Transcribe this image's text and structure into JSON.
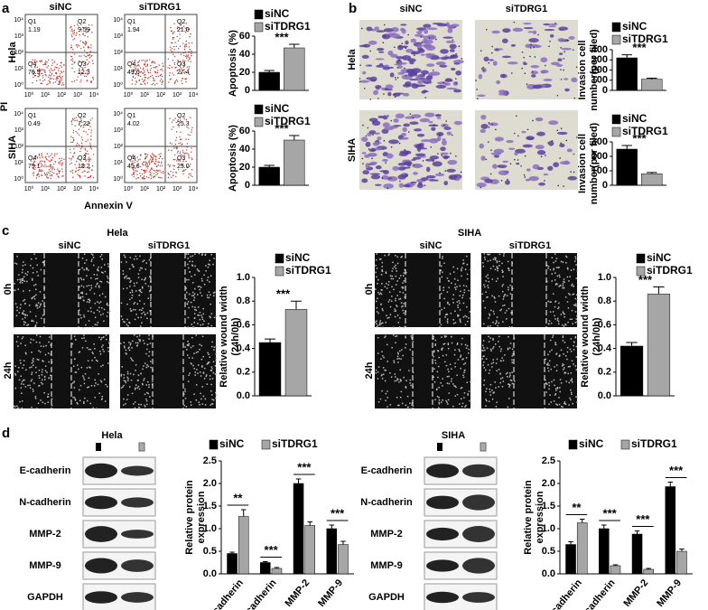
{
  "panels": {
    "a": {
      "label": "a",
      "columns": [
        "siNC",
        "siTDRG1"
      ],
      "rows": [
        "Hela",
        "SIHA"
      ],
      "y_axis": "PI",
      "x_axis": "Annexin V",
      "axis_ticks": [
        "10⁰",
        "10¹",
        "10²",
        "10³",
        "10⁴"
      ],
      "plots": [
        [
          {
            "name": "Q1",
            "value": "1.19"
          },
          {
            "name": "Q2",
            "value": "9.59"
          },
          {
            "name": "Q3",
            "value": "12.3"
          },
          {
            "name": "Q4",
            "value": "76.9"
          }
        ],
        [
          {
            "name": "Q1",
            "value": "1.94"
          },
          {
            "name": "Q2",
            "value": "21.0"
          },
          {
            "name": "Q3",
            "value": "27.4"
          },
          {
            "name": "Q4",
            "value": "49.6"
          }
        ],
        [
          {
            "name": "Q1",
            "value": "0.49"
          },
          {
            "name": "Q2",
            "value": "7.22"
          },
          {
            "name": "Q3",
            "value": "13.2"
          },
          {
            "name": "Q4",
            "value": "79.1"
          }
        ],
        [
          {
            "name": "Q1",
            "value": "4.02"
          },
          {
            "name": "Q2",
            "value": "25.3"
          },
          {
            "name": "Q3",
            "value": "25.0"
          },
          {
            "name": "Q4",
            "value": "45.6"
          }
        ]
      ]
    },
    "b": {
      "label": "b",
      "columns": [
        "siNC",
        "siTDRG1"
      ],
      "rows": [
        "Hela",
        "SIHA"
      ]
    },
    "c": {
      "label": "c",
      "groups": [
        {
          "title": "Hela",
          "columns": [
            "siNC",
            "siTDRG1"
          ],
          "rows": [
            "0h",
            "24h"
          ]
        },
        {
          "title": "SIHA",
          "columns": [
            "siNC",
            "siTDRG1"
          ],
          "rows": [
            "0h",
            "24h"
          ]
        }
      ]
    },
    "d": {
      "label": "d",
      "groups": [
        {
          "title": "Hela",
          "rows": [
            "E-cadherin",
            "N-cadherin",
            "MMP-2",
            "MMP-9",
            "GAPDH"
          ]
        },
        {
          "title": "SIHA",
          "rows": [
            "E-cadherin",
            "N-cadherin",
            "MMP-2",
            "MMP-9",
            "GAPDH"
          ]
        }
      ]
    }
  },
  "chart_data": [
    {
      "type": "bar",
      "y_label": [
        "Apoptosis (%)"
      ],
      "ylim": [
        0,
        60
      ],
      "yticks": [
        0,
        20,
        40,
        60
      ],
      "annotations": [
        "***"
      ],
      "series": [
        {
          "name": "siNC",
          "color": "#000000",
          "values": [
            20
          ],
          "errors": [
            2
          ]
        },
        {
          "name": "siTDRG1",
          "color": "#a6a6a6",
          "values": [
            47
          ],
          "errors": [
            4
          ]
        }
      ]
    },
    {
      "type": "bar",
      "y_label": [
        "Apoptosis (%)"
      ],
      "ylim": [
        0,
        60
      ],
      "yticks": [
        0,
        20,
        40,
        60
      ],
      "annotations": [
        "***"
      ],
      "series": [
        {
          "name": "siNC",
          "color": "#000000",
          "values": [
            20
          ],
          "errors": [
            2
          ]
        },
        {
          "name": "siTDRG1",
          "color": "#a6a6a6",
          "values": [
            50
          ],
          "errors": [
            5
          ]
        }
      ]
    },
    {
      "type": "bar",
      "y_label": [
        "Invasion cell",
        "number(per filed)"
      ],
      "ylim": [
        0,
        400
      ],
      "yticks": [
        0,
        100,
        200,
        300,
        400
      ],
      "annotations": [
        "***"
      ],
      "series": [
        {
          "name": "siNC",
          "color": "#000000",
          "values": [
            320
          ],
          "errors": [
            30
          ]
        },
        {
          "name": "siTDRG1",
          "color": "#a6a6a6",
          "values": [
            110
          ],
          "errors": [
            10
          ]
        }
      ]
    },
    {
      "type": "bar",
      "y_label": [
        "Invasion cell",
        "number(per filed)"
      ],
      "ylim": [
        0,
        300
      ],
      "yticks": [
        0,
        100,
        200,
        300
      ],
      "annotations": [
        "***"
      ],
      "series": [
        {
          "name": "siNC",
          "color": "#000000",
          "values": [
            250
          ],
          "errors": [
            25
          ]
        },
        {
          "name": "siTDRG1",
          "color": "#a6a6a6",
          "values": [
            80
          ],
          "errors": [
            8
          ]
        }
      ]
    },
    {
      "type": "bar",
      "y_label": [
        "Relative wound width",
        "(24h/0h)"
      ],
      "ylim": [
        0,
        1
      ],
      "yticks": [
        {
          "value": 0,
          "label": "0.0"
        },
        0.2,
        0.4,
        0.6,
        0.8,
        {
          "value": 1,
          "label": "1.0"
        }
      ],
      "annotations": [
        "***"
      ],
      "series": [
        {
          "name": "siNC",
          "color": "#000000",
          "values": [
            0.45
          ],
          "errors": [
            0.03
          ]
        },
        {
          "name": "siTDRG1",
          "color": "#a6a6a6",
          "values": [
            0.73
          ],
          "errors": [
            0.07
          ]
        }
      ]
    },
    {
      "type": "bar",
      "y_label": [
        "Relative wound width",
        "(24h/0h)"
      ],
      "ylim": [
        0,
        1
      ],
      "yticks": [
        {
          "value": 0,
          "label": "0.0"
        },
        0.2,
        0.4,
        0.6,
        0.8,
        {
          "value": 1,
          "label": "1.0"
        }
      ],
      "annotations": [
        "***"
      ],
      "series": [
        {
          "name": "siNC",
          "color": "#000000",
          "values": [
            0.42
          ],
          "errors": [
            0.03
          ]
        },
        {
          "name": "siTDRG1",
          "color": "#a6a6a6",
          "values": [
            0.86
          ],
          "errors": [
            0.06
          ]
        }
      ]
    },
    {
      "type": "bar",
      "y_label": [
        "Relative protein",
        "expression"
      ],
      "ylim": [
        0,
        2.5
      ],
      "yticks": [
        {
          "value": 0,
          "label": "0.0"
        },
        0.5,
        {
          "value": 1,
          "label": "1.0"
        },
        1.5,
        {
          "value": 2,
          "label": "2.0"
        },
        2.5
      ],
      "categories": [
        "E-cadherin",
        "N-cadherin",
        "MMP-2",
        "MMP-9"
      ],
      "annotations": [
        "**",
        "***",
        "***",
        "***"
      ],
      "series": [
        {
          "name": "siNC",
          "color": "#000000",
          "values": [
            0.45,
            0.25,
            2.0,
            1.0
          ],
          "errors": [
            0.03,
            0.02,
            0.1,
            0.08
          ]
        },
        {
          "name": "siTDRG1",
          "color": "#a6a6a6",
          "values": [
            1.27,
            0.12,
            1.07,
            0.65
          ],
          "errors": [
            0.15,
            0.02,
            0.08,
            0.07
          ]
        }
      ]
    },
    {
      "type": "bar",
      "y_label": [
        "Relative protein",
        "expression"
      ],
      "ylim": [
        0,
        2.5
      ],
      "yticks": [
        {
          "value": 0,
          "label": "0.0"
        },
        0.5,
        {
          "value": 1,
          "label": "1.0"
        },
        1.5,
        {
          "value": 2,
          "label": "2.0"
        },
        2.5
      ],
      "categories": [
        "E-cadherin",
        "N-cadherin",
        "MMP-2",
        "MMP-9"
      ],
      "annotations": [
        "**",
        "***",
        "***",
        "***"
      ],
      "series": [
        {
          "name": "siNC",
          "color": "#000000",
          "values": [
            0.65,
            1.0,
            0.88,
            1.93
          ],
          "errors": [
            0.06,
            0.08,
            0.07,
            0.1
          ],
          "_": null
        },
        {
          "name": "siTDRG1",
          "color": "#a6a6a6",
          "values": [
            1.13,
            0.18,
            0.1,
            0.5
          ],
          "errors": [
            0.08,
            0.02,
            0.02,
            0.05
          ]
        }
      ]
    }
  ]
}
